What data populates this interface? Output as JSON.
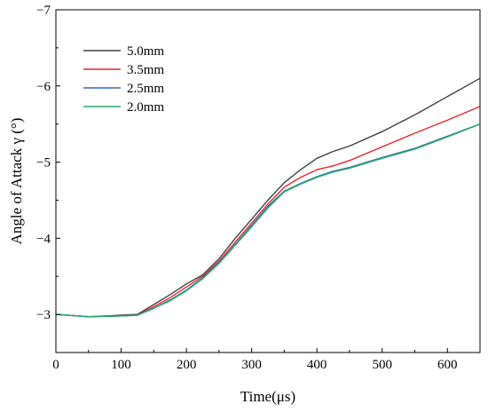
{
  "chart_data": {
    "type": "line",
    "xlabel": "Time(μs)",
    "ylabel": "Angle of Attack γ (°)",
    "xlim": [
      0,
      650
    ],
    "ylim": [
      -2.5,
      -7
    ],
    "y_axis_inverted": true,
    "xticks": [
      0,
      100,
      200,
      300,
      400,
      500,
      600
    ],
    "yticks": [
      -3,
      -4,
      -5,
      -6,
      -7
    ],
    "xtick_labels": [
      "0",
      "100",
      "200",
      "300",
      "400",
      "500",
      "600"
    ],
    "ytick_labels": [
      "−3",
      "−4",
      "−5",
      "−6",
      "−7"
    ],
    "grid": false,
    "legend_position": "top-left",
    "series": [
      {
        "name": "5.0mm",
        "color": "#404040",
        "x": [
          0,
          50,
          100,
          125,
          150,
          175,
          200,
          225,
          250,
          275,
          300,
          325,
          350,
          375,
          400,
          425,
          450,
          500,
          550,
          600,
          650
        ],
        "y": [
          -3.0,
          -2.97,
          -2.99,
          -3.0,
          -3.13,
          -3.26,
          -3.4,
          -3.52,
          -3.73,
          -4.0,
          -4.25,
          -4.5,
          -4.73,
          -4.9,
          -5.05,
          -5.14,
          -5.21,
          -5.4,
          -5.62,
          -5.86,
          -6.1
        ]
      },
      {
        "name": "3.5mm",
        "color": "#e8262a",
        "x": [
          0,
          50,
          100,
          125,
          150,
          175,
          200,
          225,
          250,
          275,
          300,
          325,
          350,
          375,
          400,
          425,
          450,
          500,
          550,
          600,
          650
        ],
        "y": [
          -3.0,
          -2.97,
          -2.98,
          -2.99,
          -3.1,
          -3.22,
          -3.36,
          -3.5,
          -3.7,
          -3.95,
          -4.2,
          -4.45,
          -4.67,
          -4.8,
          -4.9,
          -4.95,
          -5.02,
          -5.2,
          -5.38,
          -5.55,
          -5.73
        ]
      },
      {
        "name": "2.5mm",
        "color": "#2a6fb5",
        "x": [
          0,
          50,
          100,
          125,
          150,
          175,
          200,
          225,
          250,
          275,
          300,
          325,
          350,
          375,
          400,
          425,
          450,
          500,
          550,
          600,
          650
        ],
        "y": [
          -3.0,
          -2.97,
          -2.98,
          -2.99,
          -3.08,
          -3.19,
          -3.32,
          -3.48,
          -3.68,
          -3.92,
          -4.17,
          -4.42,
          -4.62,
          -4.72,
          -4.81,
          -4.88,
          -4.93,
          -5.06,
          -5.18,
          -5.34,
          -5.5
        ]
      },
      {
        "name": "2.0mm",
        "color": "#2aa86a",
        "x": [
          0,
          50,
          100,
          125,
          150,
          175,
          200,
          225,
          250,
          275,
          300,
          325,
          350,
          375,
          400,
          425,
          450,
          500,
          550,
          600,
          650
        ],
        "y": [
          -3.0,
          -2.97,
          -2.98,
          -2.99,
          -3.08,
          -3.18,
          -3.31,
          -3.47,
          -3.67,
          -3.91,
          -4.15,
          -4.4,
          -4.61,
          -4.71,
          -4.8,
          -4.87,
          -4.92,
          -5.05,
          -5.17,
          -5.33,
          -5.5
        ]
      }
    ]
  }
}
